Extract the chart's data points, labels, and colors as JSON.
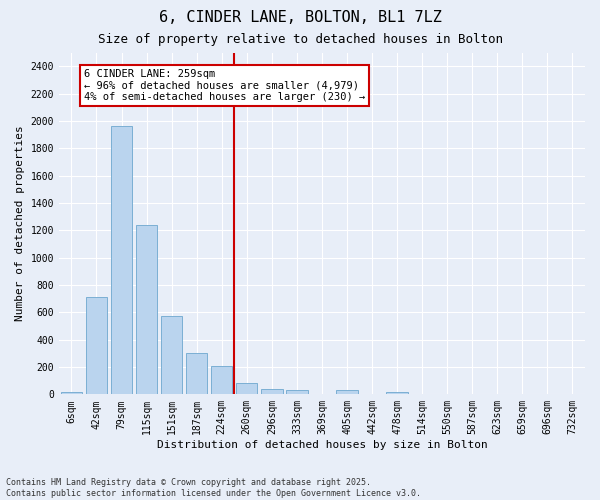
{
  "title": "6, CINDER LANE, BOLTON, BL1 7LZ",
  "subtitle": "Size of property relative to detached houses in Bolton",
  "xlabel": "Distribution of detached houses by size in Bolton",
  "ylabel": "Number of detached properties",
  "bar_color": "#bad4ee",
  "bar_edge_color": "#7bafd4",
  "background_color": "#e8eef8",
  "fig_background_color": "#e8eef8",
  "grid_color": "#ffffff",
  "vline_x": 5,
  "vline_color": "#cc0000",
  "annotation_text": "6 CINDER LANE: 259sqm\n← 96% of detached houses are smaller (4,979)\n4% of semi-detached houses are larger (230) →",
  "annotation_box_color": "#ffffff",
  "annotation_box_edge": "#cc0000",
  "bins": [
    6,
    42,
    79,
    115,
    151,
    187,
    224,
    260,
    296,
    333,
    369,
    405,
    442,
    478,
    514,
    550,
    587,
    623,
    659,
    696,
    732
  ],
  "bin_labels": [
    "6sqm",
    "42sqm",
    "79sqm",
    "115sqm",
    "151sqm",
    "187sqm",
    "224sqm",
    "260sqm",
    "296sqm",
    "333sqm",
    "369sqm",
    "405sqm",
    "442sqm",
    "478sqm",
    "514sqm",
    "550sqm",
    "587sqm",
    "623sqm",
    "659sqm",
    "696sqm",
    "732sqm"
  ],
  "values": [
    15,
    715,
    1960,
    1240,
    575,
    305,
    205,
    80,
    40,
    30,
    0,
    30,
    0,
    15,
    0,
    0,
    0,
    0,
    0,
    0
  ],
  "ylim": [
    0,
    2500
  ],
  "yticks": [
    0,
    200,
    400,
    600,
    800,
    1000,
    1200,
    1400,
    1600,
    1800,
    2000,
    2200,
    2400
  ],
  "footer": "Contains HM Land Registry data © Crown copyright and database right 2025.\nContains public sector information licensed under the Open Government Licence v3.0.",
  "title_fontsize": 11,
  "subtitle_fontsize": 9,
  "axis_label_fontsize": 8,
  "tick_fontsize": 7,
  "annotation_fontsize": 7.5,
  "footer_fontsize": 6
}
